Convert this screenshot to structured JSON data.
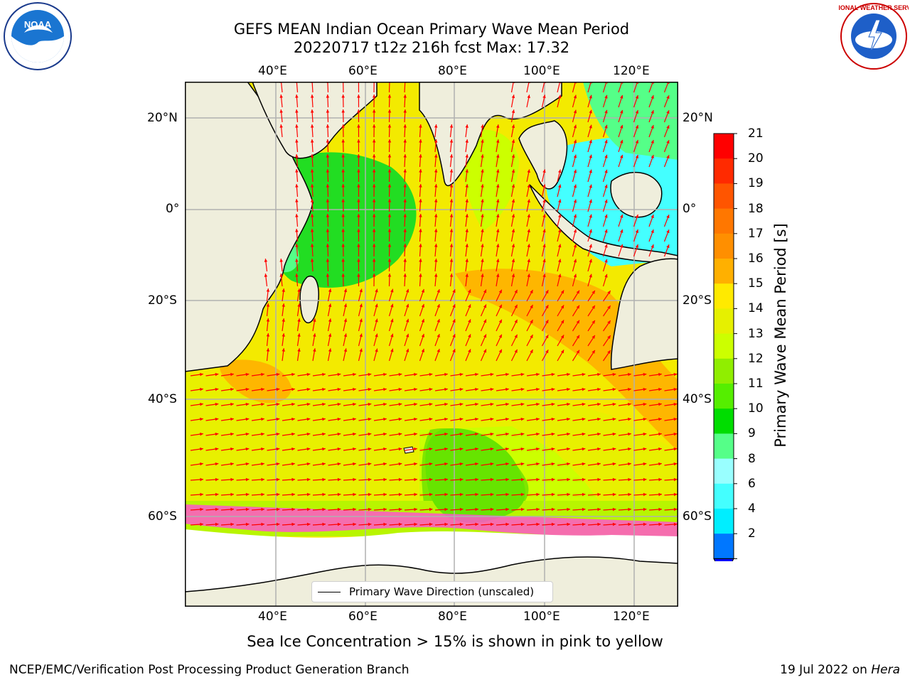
{
  "title": {
    "line1": "GEFS MEAN Indian Ocean Primary Wave Mean Period",
    "line2": "20220717 t12z 216h fcst   Max: 17.32"
  },
  "map": {
    "lon_ticks": [
      "40°E",
      "60°E",
      "80°E",
      "100°E",
      "120°E"
    ],
    "lat_ticks": [
      "20°N",
      "0°",
      "20°S",
      "40°S",
      "60°S"
    ],
    "land_color": "#efeedc",
    "arrow_color": "#ff0000",
    "grid_color": "#b0b0b0"
  },
  "colorbar": {
    "title": "Primary Wave Mean Period [s]",
    "labels": [
      "21",
      "20",
      "19",
      "18",
      "17",
      "16",
      "15",
      "14",
      "13",
      "12",
      "11",
      "10",
      "9",
      "8",
      "6",
      "4",
      "2"
    ],
    "colors": [
      "#ff0000",
      "#ff2a00",
      "#ff5500",
      "#ff7700",
      "#ff8f00",
      "#ffb000",
      "#ffea00",
      "#e6f000",
      "#ccff00",
      "#90ee00",
      "#55ee00",
      "#00dd00",
      "#55ff88",
      "#99ffff",
      "#44ffff",
      "#00eeff",
      "#0077ff"
    ],
    "extend_color": "#0000ff"
  },
  "legend": {
    "label": "Primary Wave Direction (unscaled)"
  },
  "caption": "Sea Ice Concentration > 15% is shown in pink to yellow",
  "footer": {
    "left": "NCEP/EMC/Verification Post Processing Product Generation Branch",
    "right_date": "19 Jul 2022 on ",
    "right_host": "Hera"
  },
  "logos": {
    "noaa_text": "NOAA",
    "nws_text": "NATIONAL WEATHER SERVICE"
  }
}
